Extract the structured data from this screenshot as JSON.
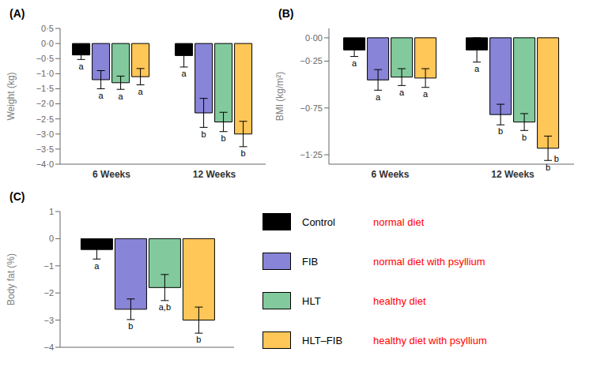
{
  "chart_data": [
    {
      "type": "bar",
      "title": "(A)",
      "ylabel": "Weight (kg)",
      "ylim": [
        -4.0,
        0.5
      ],
      "yticks": [
        {
          "value": 0.5,
          "label": "0·5"
        },
        {
          "value": 0.0,
          "label": "0·0"
        },
        {
          "value": -0.5,
          "label": "−0·5"
        },
        {
          "value": -1.0,
          "label": "−1·0"
        },
        {
          "value": -1.5,
          "label": "−1·5"
        },
        {
          "value": -2.0,
          "label": "−2·0"
        },
        {
          "value": -2.5,
          "label": "−2·5"
        },
        {
          "value": -3.0,
          "label": "−3·0"
        },
        {
          "value": -3.5,
          "label": "−3·5"
        },
        {
          "value": -4.0,
          "label": "−4·0"
        }
      ],
      "categories": [
        "6 Weeks",
        "12 Weeks"
      ],
      "series": [
        {
          "name": "Control",
          "color": "#000000",
          "values": [
            -0.38,
            -0.4
          ],
          "errors": [
            0.15,
            0.38
          ],
          "annotations": [
            "a",
            "a"
          ],
          "annotation": {
            "text": "normal diet",
            "color": "red"
          }
        },
        {
          "name": "FIB",
          "color": "#8884d8",
          "values": [
            -1.2,
            -2.3
          ],
          "errors": [
            0.3,
            0.48
          ],
          "annotations": [
            "a",
            "b"
          ],
          "annotation": {
            "text": "normal diet with psyllium",
            "color": "red"
          }
        },
        {
          "name": "HLT",
          "color": "#82ca9d",
          "values": [
            -1.3,
            -2.6
          ],
          "errors": [
            0.22,
            0.32
          ],
          "annotations": [
            "a",
            "b"
          ],
          "annotation": {
            "text": "healthy diet",
            "color": "red"
          }
        },
        {
          "name": "HLT–FIB",
          "color": "#ffc658",
          "values": [
            -1.1,
            -3.0
          ],
          "errors": [
            0.27,
            0.42
          ],
          "annotations": [
            "a",
            "b"
          ],
          "annotation": {
            "text": "healthy diet with psyllium",
            "color": "red"
          }
        }
      ]
    },
    {
      "type": "bar",
      "title": "(B)",
      "ylabel": "BMI (kg/m²)",
      "ylim": [
        -1.35,
        0.1
      ],
      "yticks": [
        {
          "value": 0.0,
          "label": "0·00"
        },
        {
          "value": -0.25,
          "label": "−0·25"
        },
        {
          "value": -0.75,
          "label": "−0·75"
        },
        {
          "value": -1.25,
          "label": "−1·25"
        }
      ],
      "categories": [
        "6 Weeks",
        "12 Weeks"
      ],
      "series": [
        {
          "name": "Control",
          "color": "#000000",
          "values": [
            -0.13,
            -0.13
          ],
          "errors": [
            0.07,
            0.13
          ],
          "annotations": [
            "a",
            "a"
          ]
        },
        {
          "name": "FIB",
          "color": "#8884d8",
          "values": [
            -0.45,
            -0.82
          ],
          "errors": [
            0.11,
            0.11
          ],
          "annotations": [
            "a",
            "b"
          ]
        },
        {
          "name": "HLT",
          "color": "#82ca9d",
          "values": [
            -0.42,
            -0.9
          ],
          "errors": [
            0.09,
            0.09
          ],
          "annotations": [
            "a",
            "b"
          ]
        },
        {
          "name": "HLT–FIB",
          "color": "#ffc658",
          "values": [
            -0.43,
            -1.18
          ],
          "errors": [
            0.1,
            0.13
          ],
          "annotations": [
            "a",
            "b"
          ]
        }
      ],
      "annotations": [
        {
          "text": "b"
        }
      ]
    },
    {
      "type": "bar",
      "title": "(C)",
      "ylabel": "Body fat (%)",
      "ylim": [
        -4.0,
        1.0
      ],
      "yticks": [
        1,
        0,
        {
          "value": -1,
          "label": "−1"
        },
        {
          "value": -2,
          "label": "−2"
        },
        {
          "value": -3,
          "label": "−3"
        },
        {
          "value": -4,
          "label": "−4"
        }
      ],
      "categories": [
        null
      ],
      "series": [
        {
          "name": "Control",
          "color": "#000000",
          "values": [
            -0.4
          ],
          "errors": [
            0.35
          ],
          "annotations": [
            "a"
          ]
        },
        {
          "name": "FIB",
          "color": "#8884d8",
          "values": [
            -2.6
          ],
          "errors": [
            0.38
          ],
          "annotations": [
            "b"
          ]
        },
        {
          "name": "HLT",
          "color": "#82ca9d",
          "values": [
            -1.8
          ],
          "errors": [
            0.48
          ],
          "annotations": [
            "a,b"
          ]
        },
        {
          "name": "HLT–FIB",
          "color": "#ffc658",
          "values": [
            -3.0
          ],
          "errors": [
            0.48
          ],
          "annotations": [
            "b"
          ]
        }
      ]
    }
  ]
}
